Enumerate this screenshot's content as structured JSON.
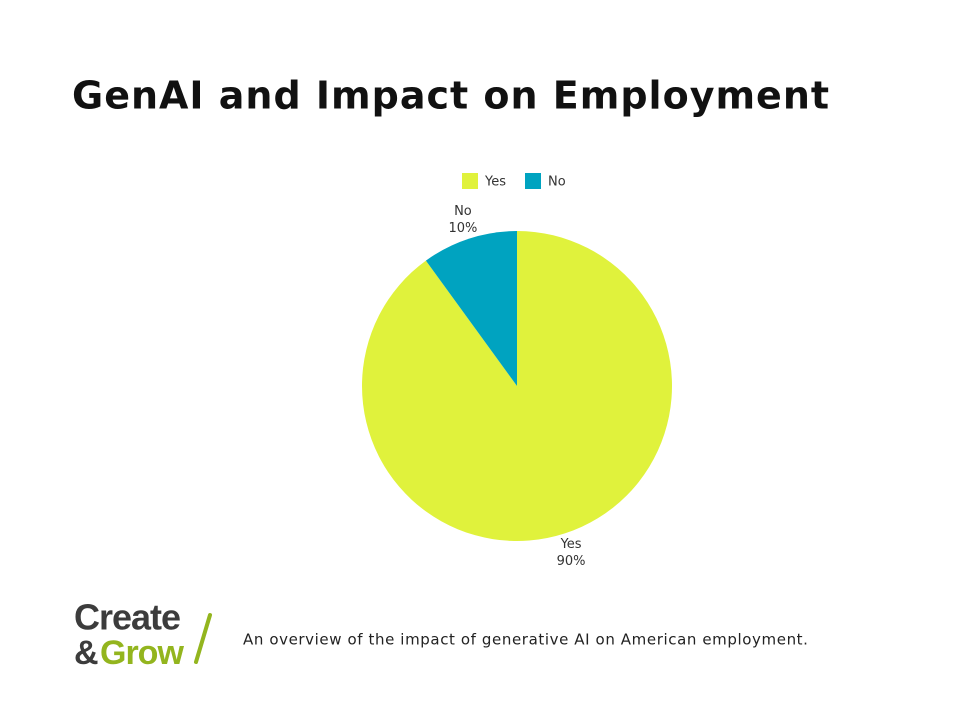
{
  "chart_data": {
    "type": "pie",
    "title": "GenAI and Impact on Employment",
    "categories": [
      "Yes",
      "No"
    ],
    "values": [
      90,
      10
    ],
    "value_labels": [
      "90%",
      "10%"
    ],
    "colors": [
      "#e0f23c",
      "#00a3c0"
    ],
    "legend": "top"
  },
  "caption": "An overview of the impact of generative AI on American employment.",
  "logo": {
    "top": "Create",
    "amp": "&",
    "bottom": "Grow"
  }
}
